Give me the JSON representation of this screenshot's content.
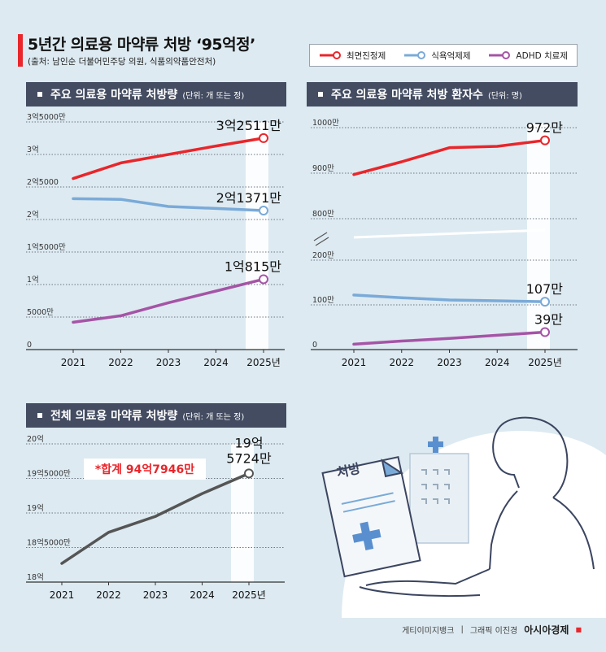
{
  "header": {
    "title": "5년간 의료용 마약류 처방 ‘95억정’",
    "source": "(출처: 남인순 더불어민주당 의원, 식품의약품안전처)"
  },
  "legend": {
    "items": [
      {
        "label": "최면진정제",
        "color": "#e8262b"
      },
      {
        "label": "식욕억제제",
        "color": "#7aaad8"
      },
      {
        "label": "ADHD 치료제",
        "color": "#a554a6"
      }
    ]
  },
  "panels": {
    "volume": {
      "title": "주요 의료용 마약류 처방량",
      "unit": "(단위: 개 또는 정)"
    },
    "patients": {
      "title": "주요 의료용 마약류 처방 환자수",
      "unit": "(단위: 명)"
    },
    "total": {
      "title": "전체 의료용 마약류 처방량",
      "unit": "(단위: 개 또는 정)"
    }
  },
  "illustration": {
    "prescription_label": "처방"
  },
  "credit": {
    "photo": "게티이미지뱅크",
    "graphic": "그래픽 이진경",
    "brand": "아시아경제"
  },
  "chart_data": [
    {
      "type": "line",
      "title": "주요 의료용 마약류 처방량",
      "x": [
        "2021",
        "2022",
        "2023",
        "2024",
        "2025년"
      ],
      "y_ticks": [
        {
          "value": 0,
          "label": "0"
        },
        {
          "value": 50000000,
          "label": "5000만"
        },
        {
          "value": 100000000,
          "label": "1억"
        },
        {
          "value": 150000000,
          "label": "1억5000만"
        },
        {
          "value": 200000000,
          "label": "2억"
        },
        {
          "value": 250000000,
          "label": "2억5000"
        },
        {
          "value": 300000000,
          "label": "3억"
        },
        {
          "value": 350000000,
          "label": "3억5000만"
        }
      ],
      "ylim": [
        0,
        350000000
      ],
      "grid": true,
      "series": [
        {
          "name": "최면진정제",
          "color": "#e8262b",
          "values": [
            263000000,
            287000000,
            300000000,
            313000000,
            325110000
          ],
          "end_label": "3억2511만"
        },
        {
          "name": "식욕억제제",
          "color": "#7aaad8",
          "values": [
            232000000,
            231000000,
            220000000,
            217000000,
            213710000
          ],
          "end_label": "2억1371만"
        },
        {
          "name": "ADHD 치료제",
          "color": "#a554a6",
          "values": [
            42000000,
            52000000,
            72000000,
            90000000,
            108150000
          ],
          "end_label": "1억815만"
        }
      ]
    },
    {
      "type": "line",
      "title": "주요 의료용 마약류 처방 환자수",
      "x": [
        "2021",
        "2022",
        "2023",
        "2024",
        "2025년"
      ],
      "y_ticks": [
        {
          "value": 0,
          "label": "0"
        },
        {
          "value": 1000000,
          "label": "100만"
        },
        {
          "value": 2000000,
          "label": "200만"
        },
        {
          "value": 8000000,
          "label": "800만"
        },
        {
          "value": 9000000,
          "label": "900만"
        },
        {
          "value": 10000000,
          "label": "1000만"
        }
      ],
      "broken_axis": [
        2000000,
        8000000
      ],
      "grid": true,
      "series": [
        {
          "name": "최면진정제",
          "color": "#e8262b",
          "values": [
            8970000,
            9250000,
            9560000,
            9590000,
            9720000
          ],
          "end_label": "972만"
        },
        {
          "name": "식욕억제제",
          "color": "#7aaad8",
          "values": [
            1220000,
            1160000,
            1110000,
            1090000,
            1070000
          ],
          "end_label": "107만"
        },
        {
          "name": "ADHD 치료제",
          "color": "#a554a6",
          "values": [
            120000,
            190000,
            250000,
            320000,
            390000
          ],
          "end_label": "39만"
        }
      ]
    },
    {
      "type": "line",
      "title": "전체 의료용 마약류 처방량",
      "x": [
        "2021",
        "2022",
        "2023",
        "2024",
        "2025년"
      ],
      "y_ticks": [
        {
          "value": 1800000000,
          "label": "18억"
        },
        {
          "value": 1850000000,
          "label": "18억5000만"
        },
        {
          "value": 1900000000,
          "label": "19억"
        },
        {
          "value": 1950000000,
          "label": "19억5000만"
        },
        {
          "value": 2000000000,
          "label": "20억"
        }
      ],
      "ylim": [
        1800000000,
        2000000000
      ],
      "grid": true,
      "annotation": "*합계  94억7946만",
      "series": [
        {
          "color": "#555555",
          "values": [
            1827000000,
            1872000000,
            1895000000,
            1928000000,
            1957240000
          ],
          "end_label_lines": [
            "19억",
            "5724만"
          ]
        }
      ]
    }
  ]
}
